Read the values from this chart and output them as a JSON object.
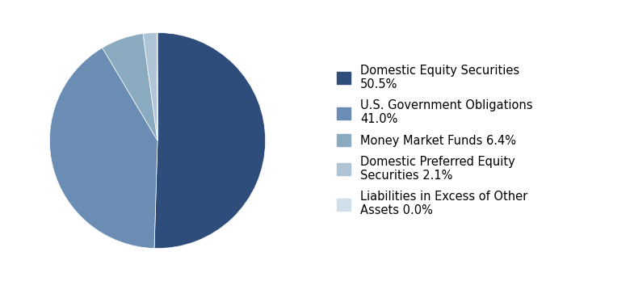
{
  "labels": [
    "Domestic Equity Securities\n50.5%",
    "U.S. Government Obligations\n41.0%",
    "Money Market Funds 6.4%",
    "Domestic Preferred Equity\nSecurities 2.1%",
    "Liabilities in Excess of Other\nAssets 0.0%"
  ],
  "values": [
    50.5,
    41.0,
    6.4,
    2.1,
    0.05
  ],
  "colors": [
    "#2e4d7b",
    "#6b8db3",
    "#8aaabf",
    "#afc4d5",
    "#d0dfe9"
  ],
  "startangle": 90,
  "background_color": "#ffffff",
  "legend_fontsize": 10.5,
  "figsize": [
    7.8,
    3.48
  ],
  "dpi": 100
}
